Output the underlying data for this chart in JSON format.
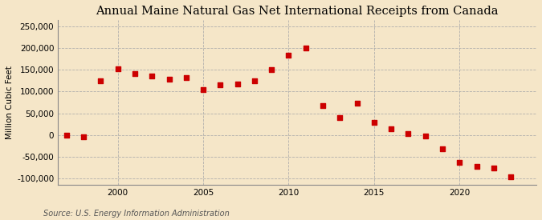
{
  "title": "Annual Maine Natural Gas Net International Receipts from Canada",
  "ylabel": "Million Cubic Feet",
  "source": "Source: U.S. Energy Information Administration",
  "background_color": "#f5e6c8",
  "years": [
    1997,
    1998,
    1999,
    2000,
    2001,
    2002,
    2003,
    2004,
    2005,
    2006,
    2007,
    2008,
    2009,
    2010,
    2011,
    2012,
    2013,
    2014,
    2015,
    2016,
    2017,
    2018,
    2019,
    2020,
    2021,
    2022,
    2023
  ],
  "values": [
    0,
    -5000,
    124000,
    153000,
    142000,
    135000,
    128000,
    133000,
    104000,
    116000,
    117000,
    125000,
    150000,
    183000,
    201000,
    68000,
    41000,
    73000,
    29000,
    14000,
    3000,
    -3000,
    -32000,
    -63000,
    -72000,
    -76000,
    -96000
  ],
  "marker_color": "#cc0000",
  "marker_size": 4,
  "xlim": [
    1996.5,
    2024.5
  ],
  "ylim": [
    -115000,
    265000
  ],
  "yticks": [
    -100000,
    -50000,
    0,
    50000,
    100000,
    150000,
    200000,
    250000
  ],
  "xticks": [
    2000,
    2005,
    2010,
    2015,
    2020
  ],
  "grid_color": "#aaaaaa",
  "title_fontsize": 10.5,
  "ylabel_fontsize": 7.5,
  "tick_fontsize": 7.5,
  "source_fontsize": 7
}
